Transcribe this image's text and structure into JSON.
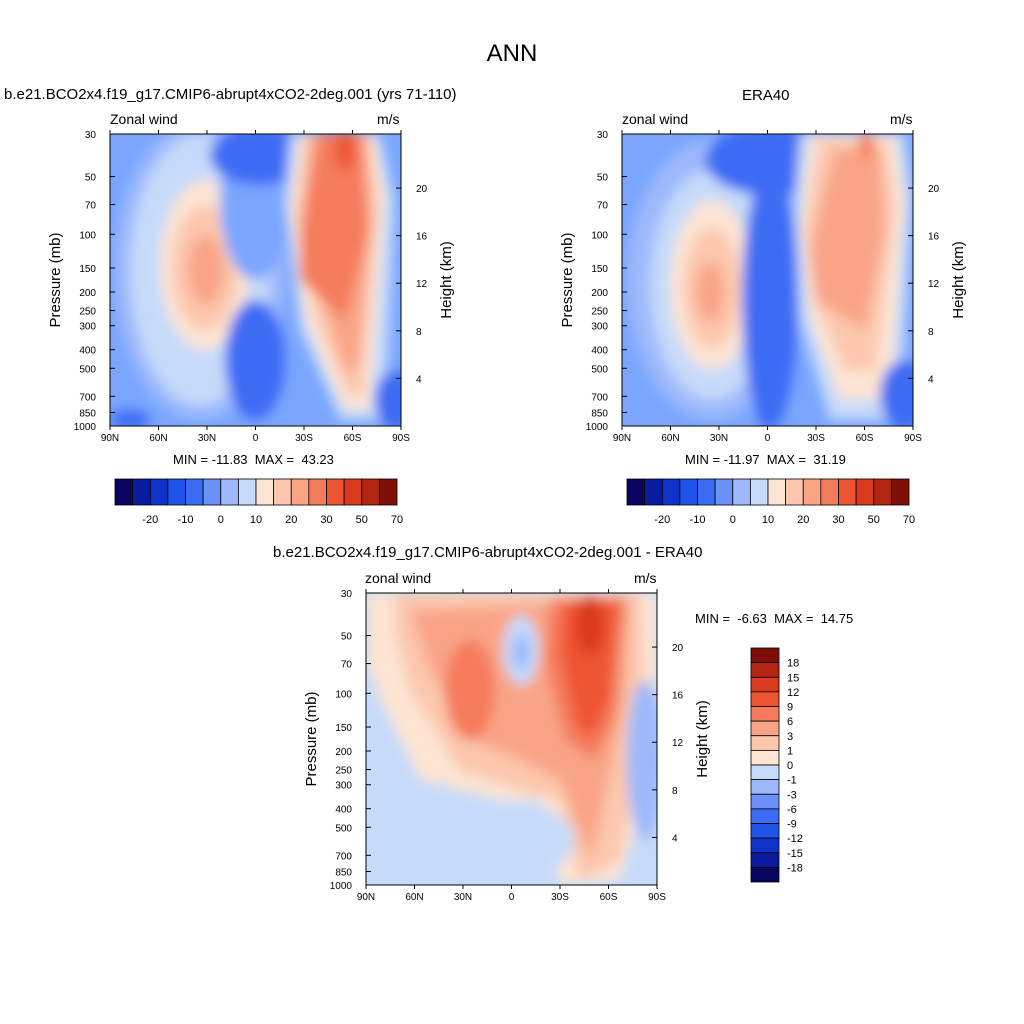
{
  "page": {
    "title": "ANN"
  },
  "colors": {
    "panel_bg": "#7aa6ff",
    "cbar_top": [
      "#08065e",
      "#0b1ba0",
      "#0f33c8",
      "#1e55e8",
      "#3c6cf4",
      "#6b90f9",
      "#9db9fb",
      "#c6dbfa",
      "#fde4d3",
      "#fcc7ad",
      "#f9a487",
      "#f57b5c",
      "#ee5432",
      "#d93a1d",
      "#b32611",
      "#7e0e06"
    ],
    "cbar_bottom": [
      "#7e0e06",
      "#b32611",
      "#d93a1d",
      "#ee5432",
      "#f57b5c",
      "#f9a487",
      "#fcc7ad",
      "#fde4d3",
      "#c6dbfa",
      "#9db9fb",
      "#6b90f9",
      "#3c6cf4",
      "#1e55e8",
      "#0f33c8",
      "#0b1ba0",
      "#08065e"
    ]
  },
  "panels": {
    "model": {
      "title": "b.e21.BCO2x4.f19_g17.CMIP6-abrupt4xCO2-2deg.001 (yrs 71-110)",
      "var_label": "Zonal wind",
      "units": "m/s",
      "minmax": "MIN = -11.83  MAX =  43.23",
      "y_label": "Pressure (mb)",
      "y2_label": "Height (km)"
    },
    "obs": {
      "title": "ERA40",
      "var_label": "zonal wind",
      "units": "m/s",
      "minmax": "MIN = -11.97  MAX =  31.19",
      "y_label": "Pressure (mb)",
      "y2_label": "Height (km)"
    },
    "diff": {
      "title": "b.e21.BCO2x4.f19_g17.CMIP6-abrupt4xCO2-2deg.001 - ERA40",
      "var_label": "zonal wind",
      "units": "m/s",
      "minmax": "MIN =  -6.63  MAX =  14.75",
      "y_label": "Pressure (mb)",
      "y2_label": "Height (km)"
    }
  },
  "chart_data": [
    {
      "type": "heatmap",
      "title": "b.e21.BCO2x4.f19_g17.CMIP6-abrupt4xCO2-2deg.001 (yrs 71-110)",
      "xlabel": "",
      "ylabel": "Pressure (mb)",
      "y2label": "Height (km)",
      "x_ticks": [
        "90N",
        "60N",
        "30N",
        "0",
        "30S",
        "60S",
        "90S"
      ],
      "y_ticks": [
        "30",
        "50",
        "70",
        "100",
        "150",
        "200",
        "250",
        "300",
        "400",
        "500",
        "700",
        "850",
        "1000"
      ],
      "y2_ticks": [
        "20",
        "16",
        "12",
        "8",
        "4"
      ],
      "min": -11.83,
      "max": 43.23,
      "colorbar_labels": [
        "-20",
        "-10",
        "0",
        "10",
        "20",
        "30",
        "50",
        "70"
      ]
    },
    {
      "type": "heatmap",
      "title": "ERA40",
      "xlabel": "",
      "ylabel": "Pressure (mb)",
      "y2label": "Height (km)",
      "x_ticks": [
        "90N",
        "60N",
        "30N",
        "0",
        "30S",
        "60S",
        "90S"
      ],
      "y_ticks": [
        "30",
        "50",
        "70",
        "100",
        "150",
        "200",
        "250",
        "300",
        "400",
        "500",
        "700",
        "850",
        "1000"
      ],
      "y2_ticks": [
        "20",
        "16",
        "12",
        "8",
        "4"
      ],
      "min": -11.97,
      "max": 31.19,
      "colorbar_labels": [
        "-20",
        "-10",
        "0",
        "10",
        "20",
        "30",
        "50",
        "70"
      ]
    },
    {
      "type": "heatmap",
      "title": "b.e21.BCO2x4.f19_g17.CMIP6-abrupt4xCO2-2deg.001 - ERA40",
      "xlabel": "",
      "ylabel": "Pressure (mb)",
      "y2label": "Height (km)",
      "x_ticks": [
        "90N",
        "60N",
        "30N",
        "0",
        "30S",
        "60S",
        "90S"
      ],
      "y_ticks": [
        "30",
        "50",
        "70",
        "100",
        "150",
        "200",
        "250",
        "300",
        "400",
        "500",
        "700",
        "850",
        "1000"
      ],
      "y2_ticks": [
        "20",
        "16",
        "12",
        "8",
        "4"
      ],
      "min": -6.63,
      "max": 14.75,
      "colorbar_labels": [
        "18",
        "15",
        "12",
        "9",
        "6",
        "3",
        "1",
        "0",
        "-1",
        "-3",
        "-6",
        "-9",
        "-12",
        "-15",
        "-18"
      ]
    }
  ]
}
